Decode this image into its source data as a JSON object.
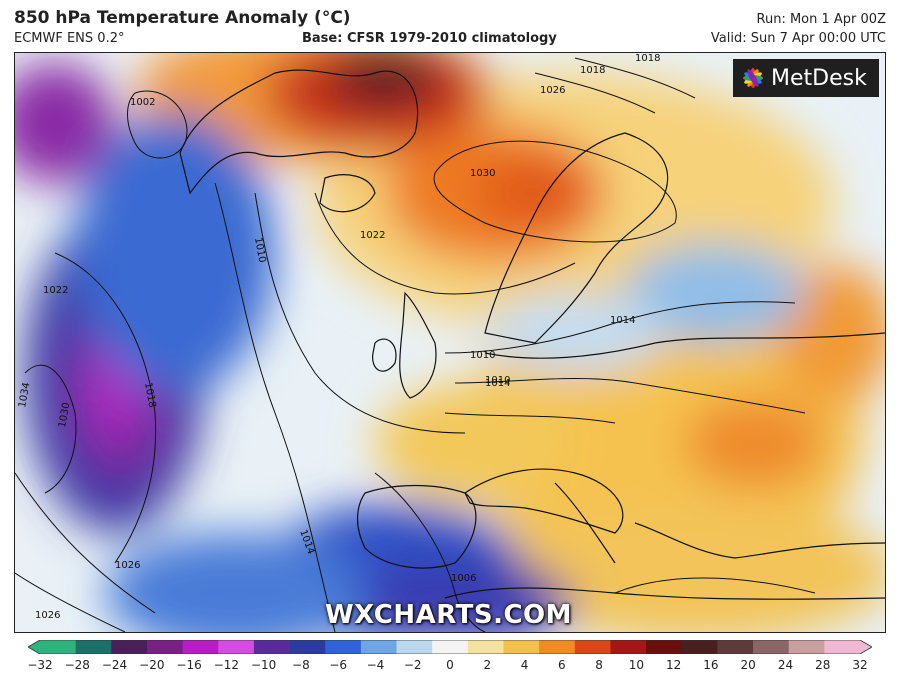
{
  "header": {
    "title": "850 hPa Temperature Anomaly (°C)",
    "subtitle": "ECMWF ENS 0.2°",
    "base": "Base: CFSR 1979-2010 climatology",
    "run": "Run: Mon 1 Apr 00Z",
    "valid": "Valid: Sun 7 Apr 00:00 UTC"
  },
  "branding": {
    "logo_text": "MetDesk",
    "watermark": "WXCHARTS.COM"
  },
  "map": {
    "region": "North Atlantic and Europe",
    "isobar_labels": [
      "1002",
      "1010",
      "1018",
      "1022",
      "1026",
      "1030",
      "1034",
      "1022",
      "1026",
      "1014",
      "1018",
      "1010",
      "1014",
      "1014",
      "1010",
      "1026",
      "1026",
      "1018",
      "1030",
      "1006"
    ]
  },
  "legend": {
    "ticks": [
      "−32",
      "−28",
      "−24",
      "−20",
      "−16",
      "−12",
      "−10",
      "−8",
      "−6",
      "−4",
      "−2",
      "0",
      "2",
      "4",
      "6",
      "8",
      "10",
      "12",
      "16",
      "20",
      "24",
      "28",
      "32"
    ],
    "colors": [
      "#2fb37d",
      "#1d6f6a",
      "#4b1f5a",
      "#7a1f86",
      "#b81cc4",
      "#d64be0",
      "#5a2b9a",
      "#2b3c9e",
      "#2f63d8",
      "#6fa6e6",
      "#b9d8f0",
      "#f4f4f4",
      "#f6e2a0",
      "#f3c04d",
      "#f08a25",
      "#d9481b",
      "#a31717",
      "#6b0e0e",
      "#4a1f1f",
      "#5e3a3a",
      "#8c6666",
      "#c9a0a0",
      "#f0b8d4"
    ]
  }
}
